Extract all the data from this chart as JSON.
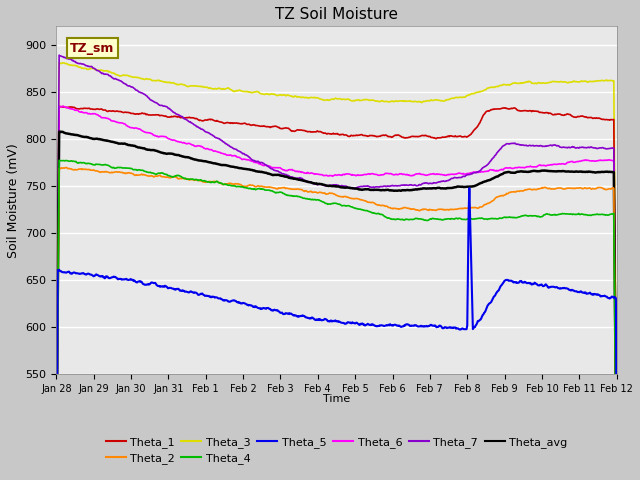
{
  "title": "TZ Soil Moisture",
  "xlabel": "Time",
  "ylabel": "Soil Moisture (mV)",
  "ylim": [
    550,
    920
  ],
  "yticks": [
    550,
    600,
    650,
    700,
    750,
    800,
    850,
    900
  ],
  "label_box_text": "TZ_sm",
  "x_labels": [
    "Jan 28",
    "Jan 29",
    "Jan 30",
    "Jan 31",
    "Feb 1",
    "Feb 2",
    "Feb 3",
    "Feb 4",
    "Feb 5",
    "Feb 6",
    "Feb 7",
    "Feb 8",
    "Feb 9",
    "Feb 10",
    "Feb 11",
    "Feb 12"
  ],
  "fig_facecolor": "#c8c8c8",
  "axes_facecolor": "#e8e8e8",
  "series": {
    "Theta_1": {
      "color": "#cc0000",
      "lw": 1.2
    },
    "Theta_2": {
      "color": "#ff8800",
      "lw": 1.2
    },
    "Theta_3": {
      "color": "#dddd00",
      "lw": 1.2
    },
    "Theta_4": {
      "color": "#00bb00",
      "lw": 1.2
    },
    "Theta_5": {
      "color": "#0000ee",
      "lw": 1.5
    },
    "Theta_6": {
      "color": "#ff00ff",
      "lw": 1.2
    },
    "Theta_7": {
      "color": "#8800cc",
      "lw": 1.2
    },
    "Theta_avg": {
      "color": "#000000",
      "lw": 1.8
    }
  }
}
